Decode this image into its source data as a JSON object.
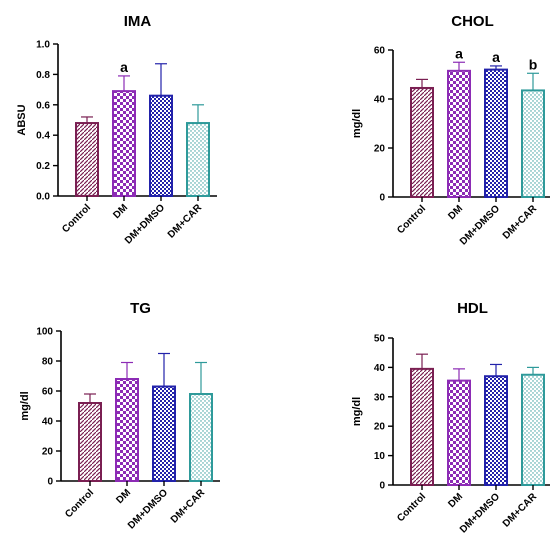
{
  "chart_data": [
    {
      "type": "bar",
      "title": "IMA",
      "ylabel": "ABSU",
      "categories": [
        "Control",
        "DM",
        "DM+DMSO",
        "DM+CAR"
      ],
      "values": [
        0.48,
        0.69,
        0.66,
        0.48
      ],
      "errors": [
        0.04,
        0.1,
        0.21,
        0.12
      ],
      "annotations": [
        "",
        "a",
        "",
        ""
      ],
      "ylim": [
        0,
        1.0
      ],
      "yticks": [
        0.0,
        0.2,
        0.4,
        0.6,
        0.8,
        1.0
      ],
      "ytick_labels": [
        "0.0",
        "0.2",
        "0.4",
        "0.6",
        "0.8",
        "1.0"
      ]
    },
    {
      "type": "bar",
      "title": "CHOL",
      "ylabel": "mg/dl",
      "categories": [
        "Control",
        "DM",
        "DM+DMSO",
        "DM+CAR"
      ],
      "values": [
        44.5,
        51.5,
        52,
        43.5
      ],
      "errors": [
        3.5,
        3.5,
        1.5,
        7
      ],
      "annotations": [
        "",
        "a",
        "a",
        "b"
      ],
      "ylim": [
        0,
        60
      ],
      "yticks": [
        0,
        20,
        40,
        60
      ],
      "ytick_labels": [
        "0",
        "20",
        "40",
        "60"
      ]
    },
    {
      "type": "bar",
      "title": "TG",
      "ylabel": "mg/dl",
      "categories": [
        "Control",
        "DM",
        "DM+DMSO",
        "DM+CAR"
      ],
      "values": [
        52,
        68,
        63,
        58
      ],
      "errors": [
        6,
        11,
        22,
        21
      ],
      "annotations": [
        "",
        "",
        "",
        ""
      ],
      "ylim": [
        0,
        100
      ],
      "yticks": [
        0,
        20,
        40,
        60,
        80,
        100
      ],
      "ytick_labels": [
        "0",
        "20",
        "40",
        "60",
        "80",
        "100"
      ]
    },
    {
      "type": "bar",
      "title": "HDL",
      "ylabel": "mg/dl",
      "categories": [
        "Control",
        "DM",
        "DM+DMSO",
        "DM+CAR"
      ],
      "values": [
        39.5,
        35.5,
        37,
        37.5
      ],
      "errors": [
        5,
        4,
        4,
        2.5
      ],
      "annotations": [
        "",
        "",
        "",
        ""
      ],
      "ylim": [
        0,
        50
      ],
      "yticks": [
        0,
        10,
        20,
        30,
        40,
        50
      ],
      "ytick_labels": [
        "0",
        "10",
        "20",
        "30",
        "40",
        "50"
      ]
    }
  ],
  "colors": {
    "control": "#7a1f52",
    "dm": "#8c2bb5",
    "dmso": "#2222aa",
    "car": "#2e9a9a",
    "axis": "#000000"
  }
}
